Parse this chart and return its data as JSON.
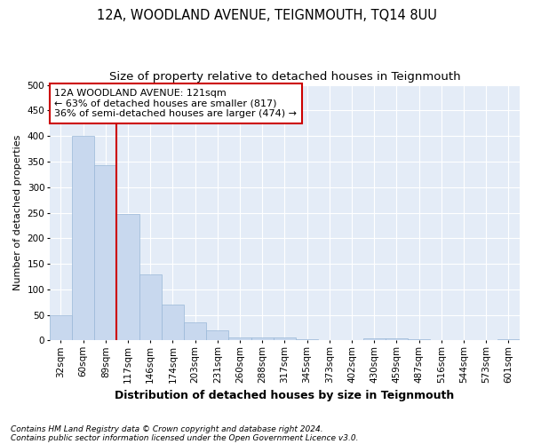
{
  "title": "12A, WOODLAND AVENUE, TEIGNMOUTH, TQ14 8UU",
  "subtitle": "Size of property relative to detached houses in Teignmouth",
  "xlabel": "Distribution of detached houses by size in Teignmouth",
  "ylabel": "Number of detached properties",
  "footnote1": "Contains HM Land Registry data © Crown copyright and database right 2024.",
  "footnote2": "Contains public sector information licensed under the Open Government Licence v3.0.",
  "annotation_line1": "12A WOODLAND AVENUE: 121sqm",
  "annotation_line2": "← 63% of detached houses are smaller (817)",
  "annotation_line3": "36% of semi-detached houses are larger (474) →",
  "bar_color": "#c8d8ee",
  "bar_edge_color": "#9ab8d8",
  "vline_color": "#cc0000",
  "annotation_box_edgecolor": "#cc0000",
  "background_color": "#e4ecf7",
  "grid_color": "#ffffff",
  "categories": [
    "32sqm",
    "60sqm",
    "89sqm",
    "117sqm",
    "146sqm",
    "174sqm",
    "203sqm",
    "231sqm",
    "260sqm",
    "288sqm",
    "317sqm",
    "345sqm",
    "373sqm",
    "402sqm",
    "430sqm",
    "459sqm",
    "487sqm",
    "516sqm",
    "544sqm",
    "573sqm",
    "601sqm"
  ],
  "values": [
    50,
    400,
    343,
    247,
    130,
    70,
    36,
    20,
    6,
    6,
    6,
    2,
    0,
    0,
    5,
    5,
    2,
    0,
    0,
    0,
    2
  ],
  "ylim": [
    0,
    500
  ],
  "yticks": [
    0,
    50,
    100,
    150,
    200,
    250,
    300,
    350,
    400,
    450,
    500
  ],
  "vline_x": 2.5,
  "title_fontsize": 10.5,
  "subtitle_fontsize": 9.5,
  "tick_fontsize": 7.5,
  "ylabel_fontsize": 8,
  "xlabel_fontsize": 9
}
